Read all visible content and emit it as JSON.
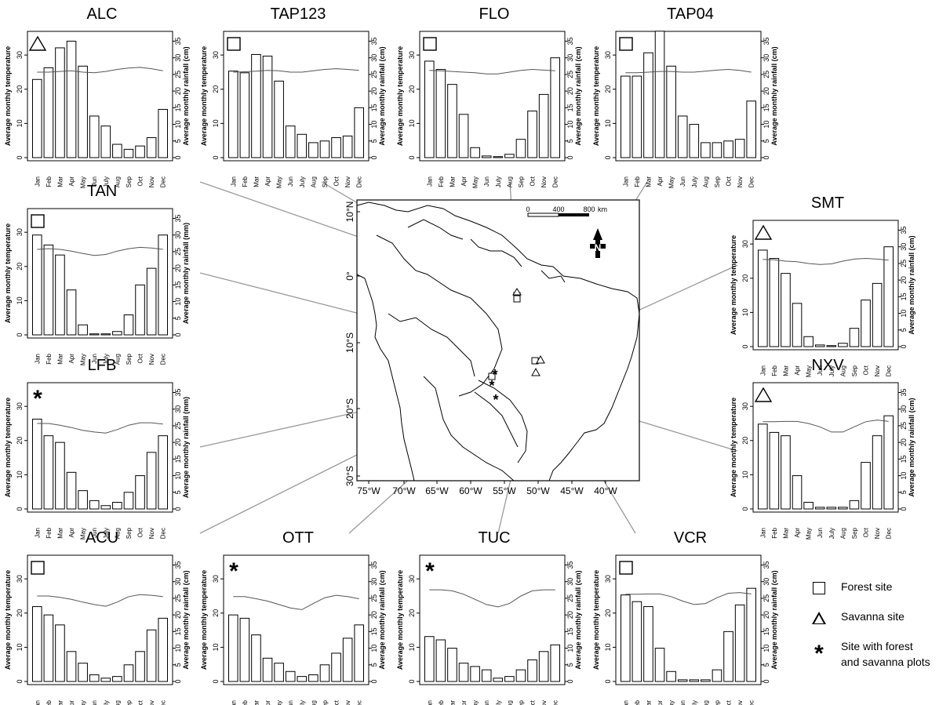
{
  "chart_data": [
    {
      "type": "bar",
      "title": "ALC",
      "site_type": "savanna",
      "ylabel": "Average monthly temperature",
      "y2label": "Average monthly rainfall (cm)",
      "categories": [
        "Jan",
        "Feb",
        "Mar",
        "Apr",
        "May",
        "Jun",
        "July",
        "Aug",
        "Sep",
        "Oct",
        "Nov",
        "Dec"
      ],
      "rainfall": [
        23.5,
        27,
        33,
        35,
        27.5,
        12.5,
        9.5,
        4,
        2.5,
        3.5,
        6,
        14.5
      ],
      "temperature": [
        25,
        25,
        25.2,
        25.4,
        25,
        24.8,
        25.2,
        25.8,
        26.2,
        26.4,
        26,
        25.4
      ]
    },
    {
      "type": "bar",
      "title": "TAP123",
      "site_type": "forest",
      "ylabel": "Average monthly temperature",
      "y2label": "Average monthly rainfall (cm)",
      "categories": [
        "Jan",
        "Feb",
        "Mar",
        "Apr",
        "May",
        "Jun",
        "July",
        "Aug",
        "Sep",
        "Oct",
        "Nov",
        "Dec"
      ],
      "rainfall": [
        26,
        25.5,
        31,
        30.5,
        23,
        9.5,
        7,
        4.5,
        5,
        6,
        6.5,
        15
      ],
      "temperature": [
        25,
        25.1,
        25.3,
        25.5,
        25.4,
        25,
        25,
        25.4,
        25.8,
        26,
        25.8,
        25.5
      ]
    },
    {
      "type": "bar",
      "title": "FLO",
      "site_type": "forest",
      "ylabel": "Average monthly temperature",
      "y2label": "Average monthly rainfall (cm)",
      "categories": [
        "Jan",
        "Feb",
        "Mar",
        "Apr",
        "May",
        "Jun",
        "July",
        "Aug",
        "Sep",
        "Oct",
        "Nov",
        "Dec"
      ],
      "rainfall": [
        29,
        26.5,
        22,
        13,
        3,
        0.5,
        0.3,
        1,
        5.5,
        14,
        19,
        30
      ],
      "temperature": [
        25.5,
        25.4,
        25.2,
        25,
        24.8,
        24.5,
        24.5,
        25,
        25.5,
        25.8,
        25.6,
        25.4
      ]
    },
    {
      "type": "bar",
      "title": "TAP04",
      "site_type": "forest",
      "ylabel": "Average monthly temperature",
      "y2label": "Average monthly rainfall (cm)",
      "categories": [
        "Jan",
        "Feb",
        "Mar",
        "Apr",
        "May",
        "Jun",
        "July",
        "Aug",
        "Sep",
        "Oct",
        "Nov",
        "Dec"
      ],
      "rainfall": [
        24.5,
        24.5,
        31.5,
        38,
        27.5,
        12.5,
        10,
        4.5,
        4.5,
        5,
        5.5,
        17
      ],
      "temperature": [
        24.8,
        24.8,
        25,
        25.2,
        25.2,
        25,
        25,
        25.3,
        25.6,
        25.8,
        25.5,
        25
      ]
    },
    {
      "type": "bar",
      "title": "TAN",
      "site_type": "forest",
      "ylabel": "Average monthly temperature",
      "y2label": "Average monthly rainfall (mm)",
      "categories": [
        "Jan",
        "Feb",
        "Mar",
        "Apr",
        "May",
        "Jun",
        "July",
        "Aug",
        "Sep",
        "Oct",
        "Nov",
        "Dec"
      ],
      "rainfall": [
        30,
        27,
        24,
        13.5,
        3,
        0.3,
        0.3,
        1,
        6,
        15,
        20,
        30
      ],
      "temperature": [
        25,
        25.2,
        25,
        24.5,
        23.8,
        23.2,
        23.5,
        24.5,
        25.2,
        25.6,
        25.4,
        25
      ]
    },
    {
      "type": "bar",
      "title": "SMT",
      "site_type": "savanna",
      "ylabel": "Average monthly temperature",
      "y2label": "Average monthly rainfall (cm)",
      "categories": [
        "Jan",
        "Feb",
        "Mar",
        "Apr",
        "May",
        "Jun",
        "July",
        "Aug",
        "Sep",
        "Oct",
        "Nov",
        "Dec"
      ],
      "rainfall": [
        29,
        26.5,
        22,
        13,
        3,
        0.5,
        0.3,
        1,
        5.5,
        14,
        19,
        30
      ],
      "temperature": [
        25.5,
        25.4,
        25,
        24.8,
        24.3,
        24,
        24.2,
        25,
        25.6,
        25.8,
        25.6,
        25.3
      ]
    },
    {
      "type": "bar",
      "title": "LFB",
      "site_type": "forest and savanna",
      "ylabel": "Average monthly temperature",
      "y2label": "Average monthly rainfall (mm)",
      "categories": [
        "Jan",
        "Feb",
        "Mar",
        "Apr",
        "May",
        "Jun",
        "July",
        "Aug",
        "Sep",
        "Oct",
        "Nov",
        "Dec"
      ],
      "rainfall": [
        27,
        22,
        20,
        11,
        5.5,
        2.5,
        1,
        2,
        5,
        10,
        17,
        22
      ],
      "temperature": [
        25,
        25,
        24.5,
        23.8,
        23,
        22.5,
        22.2,
        23.2,
        24.5,
        25.2,
        25.2,
        24.8
      ]
    },
    {
      "type": "bar",
      "title": "NXV",
      "site_type": "savanna",
      "ylabel": "Average monthly temperature",
      "y2label": "Average monthly rainfall (cm)",
      "categories": [
        "Jan",
        "Feb",
        "Mar",
        "Apr",
        "May",
        "Jun",
        "July",
        "Aug",
        "Sep",
        "Oct",
        "Nov",
        "Dec"
      ],
      "rainfall": [
        25.5,
        23,
        22,
        10,
        2,
        0.5,
        0.5,
        0.5,
        2.5,
        14,
        22,
        28
      ],
      "temperature": [
        25.5,
        25.5,
        25.6,
        25.6,
        25,
        24,
        22.5,
        22.5,
        24,
        25.5,
        26,
        25.6
      ]
    },
    {
      "type": "bar",
      "title": "ACU",
      "site_type": "forest",
      "ylabel": "Average monthly temperature",
      "y2label": "Average monthly rainfall (cm)",
      "categories": [
        "Jan",
        "Feb",
        "Mar",
        "Apr",
        "May",
        "Jun",
        "July",
        "Aug",
        "Sep",
        "Oct",
        "Nov",
        "Dec"
      ],
      "rainfall": [
        22.5,
        20,
        17,
        9,
        5.5,
        2,
        1,
        1.5,
        5,
        9,
        15.5,
        19
      ],
      "temperature": [
        25,
        25,
        24.6,
        24,
        23.2,
        22.5,
        22,
        23.2,
        24.8,
        25.4,
        25.2,
        24.8
      ]
    },
    {
      "type": "bar",
      "title": "OTT",
      "site_type": "forest and savanna",
      "ylabel": "Average monthly temperature",
      "y2label": "Average monthly rainfall (cm)",
      "categories": [
        "Jan",
        "Feb",
        "Mar",
        "Apr",
        "May",
        "Jun",
        "July",
        "Aug",
        "Sep",
        "Oct",
        "Nov",
        "Dec"
      ],
      "rainfall": [
        20,
        19,
        14,
        7,
        5.5,
        3,
        1.5,
        2,
        5,
        8.5,
        13,
        17
      ],
      "temperature": [
        24.8,
        24.8,
        24.2,
        23.5,
        22.5,
        21.5,
        21,
        22.8,
        24.5,
        25.2,
        24.8,
        24.2
      ]
    },
    {
      "type": "bar",
      "title": "TUC",
      "site_type": "forest and savanna",
      "ylabel": "Average monthly temperature",
      "y2label": "Average monthly rainfall (cm)",
      "categories": [
        "Jan",
        "Feb",
        "Mar",
        "Apr",
        "May",
        "Jun",
        "July",
        "Aug",
        "Sep",
        "Oct",
        "Nov",
        "Dec"
      ],
      "rainfall": [
        13.5,
        12.5,
        10,
        5.5,
        4.5,
        3.5,
        1,
        1.5,
        3.5,
        6.5,
        9,
        11
      ],
      "temperature": [
        26.8,
        26.8,
        26.5,
        25.5,
        24,
        22.5,
        21.8,
        22.8,
        25,
        26.5,
        26.8,
        26.8
      ]
    },
    {
      "type": "bar",
      "title": "VCR",
      "site_type": "forest",
      "ylabel": "Average monthly temperature",
      "y2label": "Average monthly rainfall (cm)",
      "categories": [
        "Jan",
        "Feb",
        "Mar",
        "Apr",
        "May",
        "Jun",
        "July",
        "Aug",
        "Sep",
        "Oct",
        "Nov",
        "Dec"
      ],
      "rainfall": [
        26,
        24,
        22.5,
        10,
        3,
        0.5,
        0.5,
        0.5,
        3.5,
        15,
        23,
        28
      ],
      "temperature": [
        25.5,
        25.5,
        25.6,
        25.6,
        24.8,
        23.5,
        22.5,
        22.8,
        24.5,
        25.8,
        26,
        25.6
      ]
    }
  ],
  "axes": {
    "left_ticks": [
      "0",
      "10",
      "20",
      "30"
    ],
    "right_ticks": [
      "0",
      "5",
      "10",
      "15",
      "20",
      "25",
      "30",
      "35"
    ]
  },
  "map": {
    "lat_labels": [
      "10°N",
      "0°",
      "10°S",
      "20°S",
      "30°S"
    ],
    "lon_labels": [
      "75°W",
      "70°W",
      "65°W",
      "60°W",
      "55°W",
      "50°W",
      "45°W",
      "40°W"
    ],
    "scale": {
      "tick0": "0",
      "tick1": "400",
      "tick2": "800",
      "unit": "km"
    },
    "north_label": "N"
  },
  "legend": {
    "forest": "Forest site",
    "savanna": "Savanna site",
    "both_line1": "Site with forest",
    "both_line2": "and savanna plots"
  }
}
